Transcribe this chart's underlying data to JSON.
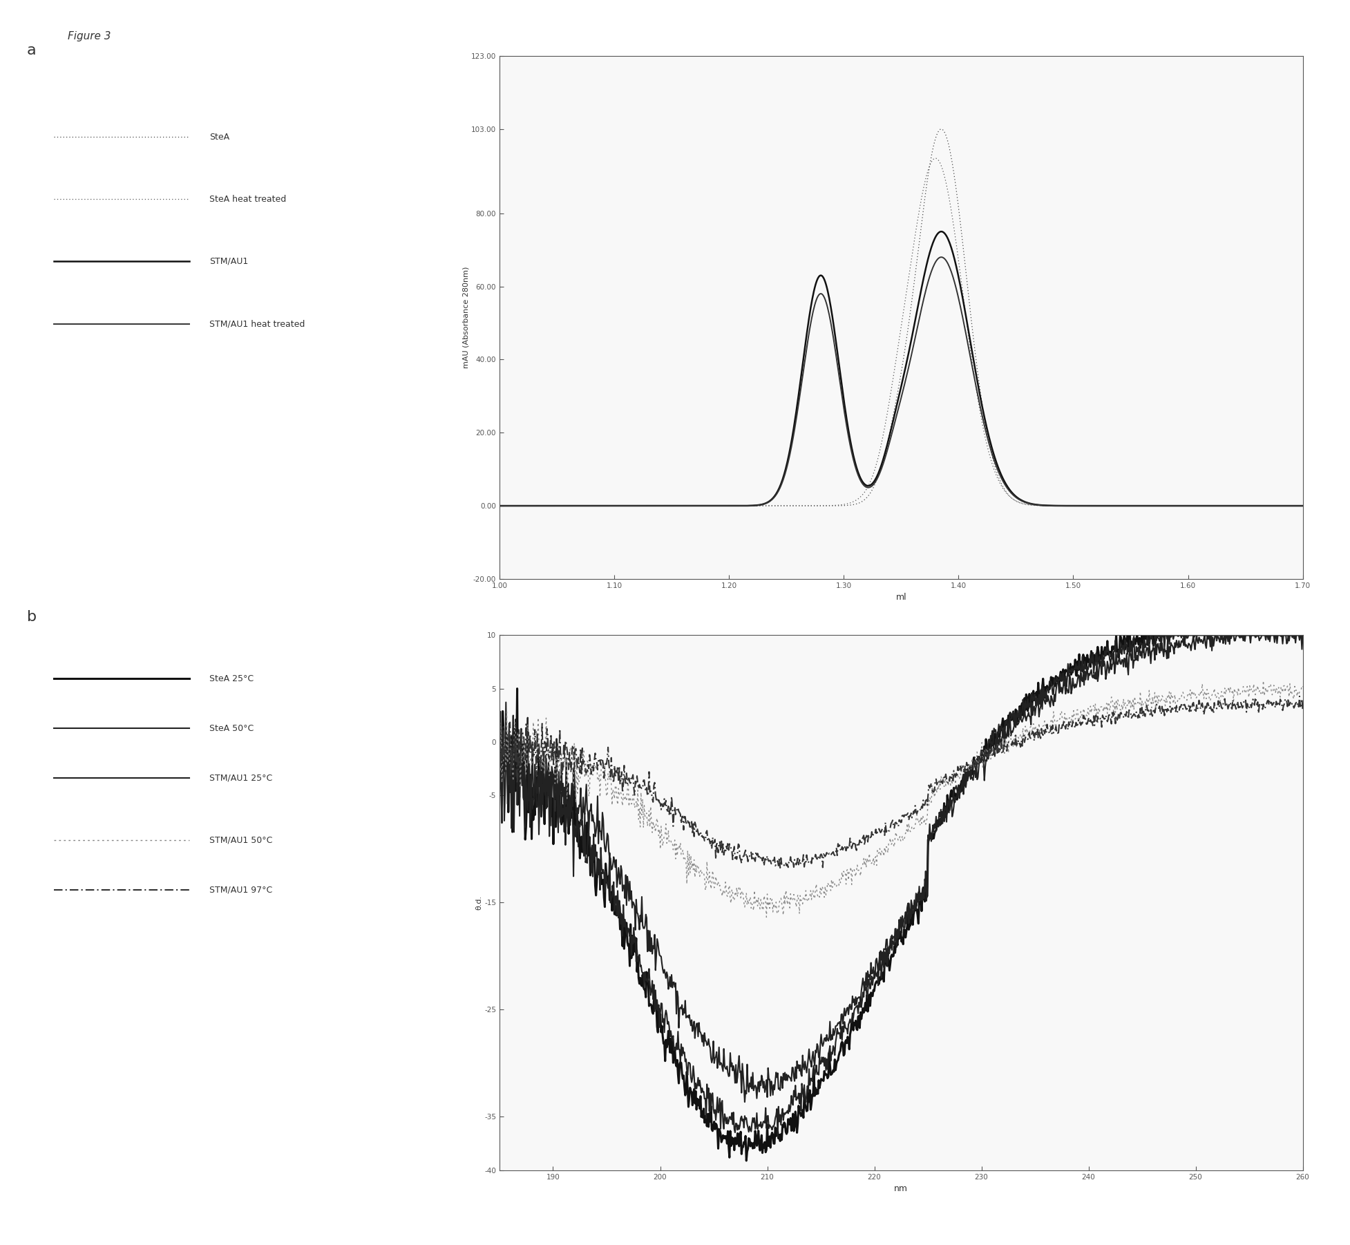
{
  "figure_title": "Figure 3",
  "panel_a": {
    "xlabel": "ml",
    "ylabel": "mAU (Absorbance 280nm)",
    "xlim": [
      1.0,
      1.7
    ],
    "ylim": [
      -20.0,
      123.0
    ],
    "yticks": [
      0.0,
      20.0,
      40.0,
      60.0,
      80.0,
      103.0,
      123.0
    ],
    "ytick_labels": [
      "0.00",
      "20.00",
      "40.00",
      "60.00",
      "80.00",
      "103.00",
      "123.00"
    ],
    "xticks": [
      1.0,
      1.1,
      1.2,
      1.3,
      1.4,
      1.5,
      1.6,
      1.7
    ],
    "xtick_labels": [
      "1.00",
      "1.10",
      "1.20",
      "1.30",
      "1.40",
      "1.50",
      "1.60",
      "1.70"
    ],
    "extra_yticks": [
      -20.0
    ],
    "extra_ytick_labels": [
      "-20.00"
    ],
    "legend": [
      "SteA",
      "SteA heat treated",
      "STM/AU1",
      "STM/AU1 heat treated"
    ]
  },
  "panel_b": {
    "xlabel": "nm",
    "ylabel": "θ.d.",
    "xlim": [
      185,
      260
    ],
    "ylim": [
      -40,
      10
    ],
    "yticks": [
      10,
      5,
      0,
      -5,
      -15,
      -25,
      -35,
      -40
    ],
    "ytick_labels": [
      "10",
      "5",
      "0",
      "-5",
      "-15",
      "-25",
      "-35",
      "-40"
    ],
    "xticks": [
      190,
      200,
      210,
      220,
      230,
      240,
      250,
      260
    ],
    "xtick_labels": [
      "190",
      "200",
      "210",
      "220",
      "230",
      "240",
      "250",
      "260"
    ],
    "legend": [
      "SteA 25°C",
      "SteA 50°C",
      "STM/AU1 25°C",
      "STM/AU1 50°C",
      "STM/AU1 97°C"
    ]
  },
  "background_color": "#ffffff",
  "text_color": "#000000"
}
